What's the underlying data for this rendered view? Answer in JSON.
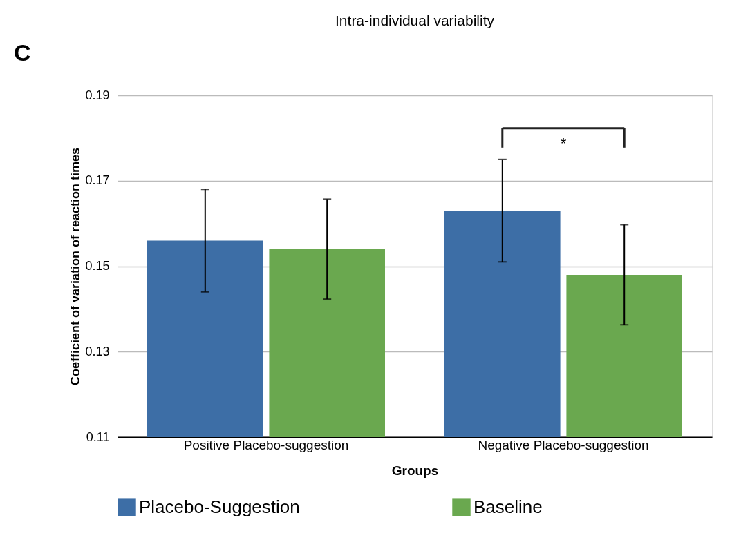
{
  "chart_data": {
    "type": "bar",
    "title": "Intra-individual variability",
    "xlabel": "Groups",
    "ylabel": "Coefficient of variation of reaction times",
    "categories": [
      "Positive Placebo-suggestion",
      "Negative Placebo-suggestion"
    ],
    "series": [
      {
        "name": "Placebo-Suggestion",
        "color": "#3d6ea6",
        "values": [
          0.156,
          0.163
        ],
        "errors": [
          0.012,
          0.012
        ]
      },
      {
        "name": "Baseline",
        "color": "#6aa84f",
        "values": [
          0.154,
          0.148
        ],
        "errors": [
          0.0117,
          0.0117
        ]
      }
    ],
    "ylim": [
      0.11,
      0.19
    ],
    "yticks": [
      0.11,
      0.13,
      0.15,
      0.17,
      0.19
    ],
    "grid": "y",
    "legend": "bottom",
    "annotations": [
      "C",
      "*"
    ]
  }
}
